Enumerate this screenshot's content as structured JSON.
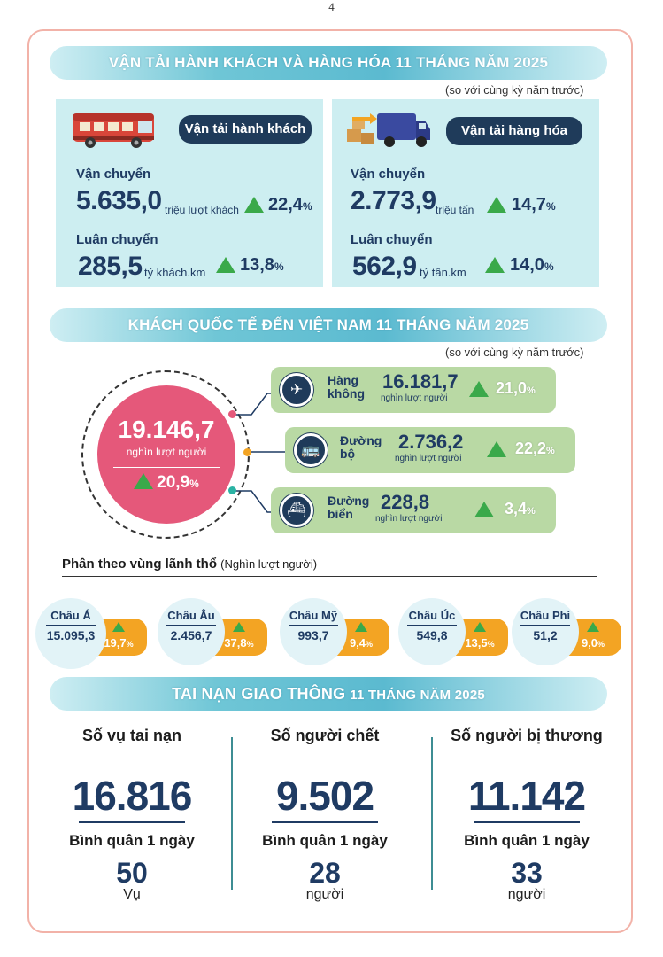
{
  "page_number": "4",
  "transport": {
    "banner": "VẬN TẢI HÀNH KHÁCH VÀ HÀNG HÓA 11 THÁNG NĂM 2025",
    "note": "(so với cùng kỳ năm trước)",
    "passenger": {
      "title": "Vận tải hành khách",
      "carry_label": "Vận chuyển",
      "carry_value": "5.635,0",
      "carry_unit": "triệu lượt khách",
      "carry_pct": "22,4",
      "rotate_label": "Luân chuyển",
      "rotate_value": "285,5",
      "rotate_unit": "tỷ khách.km",
      "rotate_pct": "13,8"
    },
    "cargo": {
      "title": "Vận tải hàng hóa",
      "carry_label": "Vận chuyển",
      "carry_value": "2.773,9",
      "carry_unit": "triệu tấn",
      "carry_pct": "14,7",
      "rotate_label": "Luân chuyển",
      "rotate_value": "562,9",
      "rotate_unit": "tỷ tấn.km",
      "rotate_pct": "14,0"
    },
    "pct_sign": "%"
  },
  "international": {
    "banner": "KHÁCH QUỐC TẾ ĐẾN VIỆT NAM 11 THÁNG NĂM 2025",
    "note": "(so với cùng kỳ năm trước)",
    "total_value": "19.146,7",
    "total_unit": "nghìn lượt người",
    "total_pct": "20,9",
    "modes": [
      {
        "name_line1": "Hàng",
        "name_line2": "không",
        "value": "16.181,7",
        "unit": "nghìn lượt người",
        "pct": "21,0",
        "icon": "airplane-icon"
      },
      {
        "name_line1": "Đường",
        "name_line2": "bộ",
        "value": "2.736,2",
        "unit": "nghìn lượt người",
        "pct": "22,2",
        "icon": "bus-icon"
      },
      {
        "name_line1": "Đường",
        "name_line2": "biển",
        "value": "228,8",
        "unit": "nghìn lượt người",
        "pct": "3,4",
        "icon": "ship-icon"
      }
    ],
    "region_heading": "Phân theo vùng lãnh thổ",
    "region_heading_unit": "(Nghìn lượt người)",
    "regions": [
      {
        "name": "Châu Á",
        "value": "15.095,3",
        "pct": "19,7"
      },
      {
        "name": "Châu Âu",
        "value": "2.456,7",
        "pct": "37,8"
      },
      {
        "name": "Châu Mỹ",
        "value": "993,7",
        "pct": "9,4"
      },
      {
        "name": "Châu Úc",
        "value": "549,8",
        "pct": "13,5"
      },
      {
        "name": "Châu Phi",
        "value": "51,2",
        "pct": "9,0"
      }
    ]
  },
  "accidents": {
    "banner_main": "TAI NẠN GIAO THÔNG",
    "banner_sub": "11 THÁNG NĂM 2025",
    "columns": [
      {
        "title": "Số vụ tai nạn",
        "value": "16.816",
        "avg_label": "Bình quân 1 ngày",
        "avg_value": "50",
        "avg_unit": "Vụ"
      },
      {
        "title": "Số người chết",
        "value": "9.502",
        "avg_label": "Bình quân 1 ngày",
        "avg_value": "28",
        "avg_unit": "người"
      },
      {
        "title": "Số người bị thương",
        "value": "11.142",
        "avg_label": "Bình quân 1 ngày",
        "avg_value": "33",
        "avg_unit": "người"
      }
    ]
  },
  "colors": {
    "navy": "#1f3b63",
    "green_up": "#3aa94a",
    "pink": "#e5587a",
    "orange": "#f3a423",
    "mode_green": "#b9d9a4"
  }
}
